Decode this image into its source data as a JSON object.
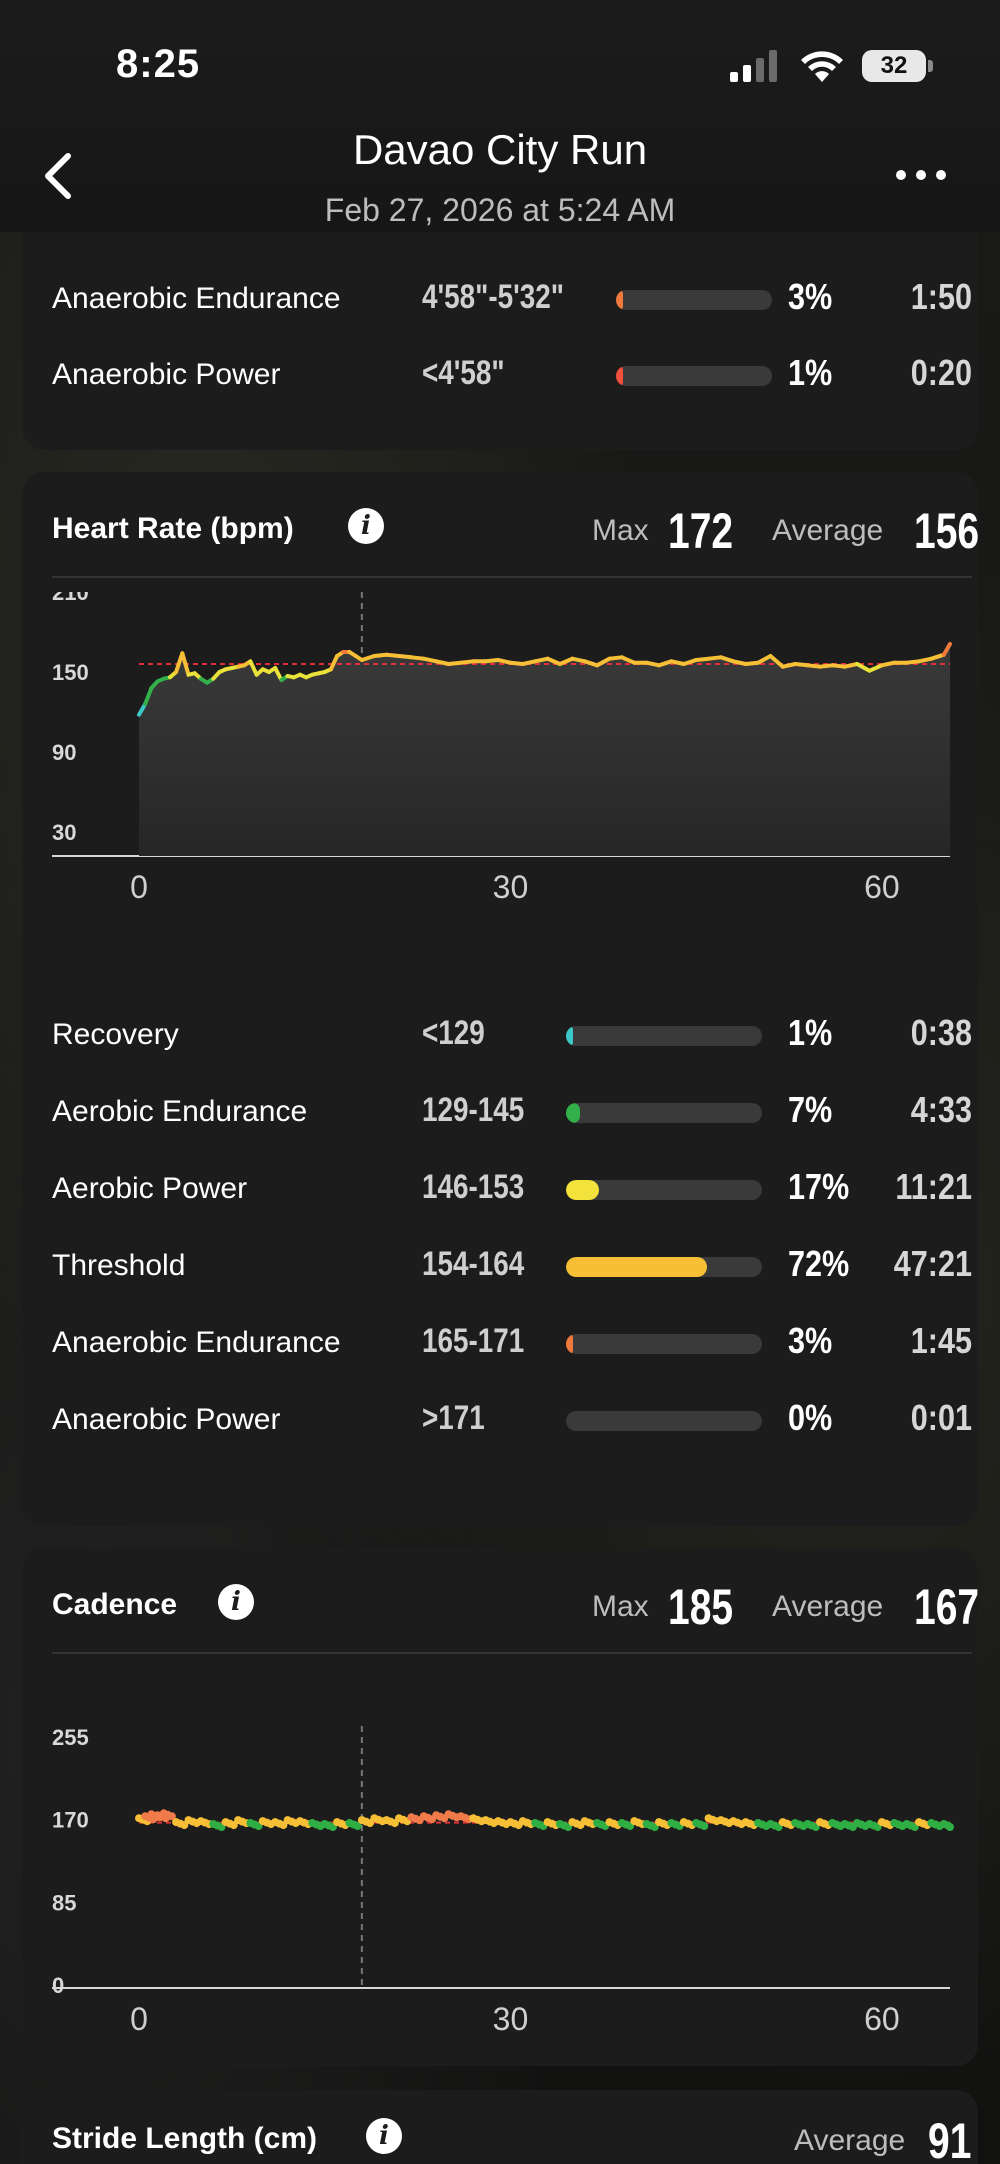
{
  "status_bar": {
    "time": "8:25",
    "battery": "32"
  },
  "header": {
    "title": "Davao City Run",
    "subtitle": "Feb 27, 2026 at 5:24 AM"
  },
  "pace_zones_partial": [
    {
      "name": "Anaerobic Endurance",
      "range": "4'58\"-5'32\"",
      "percent": "3%",
      "time": "1:50",
      "fraction": 0.03,
      "color": "#f07a3c"
    },
    {
      "name": "Anaerobic Power",
      "range": "<4'58\"",
      "percent": "1%",
      "time": "0:20",
      "fraction": 0.01,
      "color": "#f0503c"
    }
  ],
  "heart_rate": {
    "title": "Heart Rate (bpm)",
    "max_label": "Max",
    "max_value": "172",
    "avg_label": "Average",
    "avg_value": "156",
    "zones": [
      {
        "name": "Recovery",
        "range": "<129",
        "percent": "1%",
        "time": "0:38",
        "fraction": 0.01,
        "color": "#3cc8c8"
      },
      {
        "name": "Aerobic Endurance",
        "range": "129-145",
        "percent": "7%",
        "time": "4:33",
        "fraction": 0.07,
        "color": "#33b04a"
      },
      {
        "name": "Aerobic Power",
        "range": "146-153",
        "percent": "17%",
        "time": "11:21",
        "fraction": 0.17,
        "color": "#f2e23a"
      },
      {
        "name": "Threshold",
        "range": "154-164",
        "percent": "72%",
        "time": "47:21",
        "fraction": 0.72,
        "color": "#f7bf36"
      },
      {
        "name": "Anaerobic Endurance",
        "range": "165-171",
        "percent": "3%",
        "time": "1:45",
        "fraction": 0.03,
        "color": "#f07a3c"
      },
      {
        "name": "Anaerobic Power",
        "range": ">171",
        "percent": "0%",
        "time": "0:01",
        "fraction": 0.0,
        "color": "#f0503c"
      }
    ]
  },
  "cadence": {
    "title": "Cadence",
    "max_label": "Max",
    "max_value": "185",
    "avg_label": "Average",
    "avg_value": "167"
  },
  "stride": {
    "title": "Stride Length (cm)",
    "avg_label": "Average",
    "avg_value": "91"
  },
  "chart_data": [
    {
      "type": "line",
      "title": "Heart Rate (bpm)",
      "x_ticks": [
        "0",
        "30",
        "60"
      ],
      "y_ticks": [
        "210",
        "150",
        "90",
        "30"
      ],
      "xlim": [
        0,
        65.5
      ],
      "ylim": [
        30,
        210
      ],
      "average_line": 156,
      "marker_x": 18,
      "series": [
        {
          "x": [
            0,
            0.5,
            1,
            1.5,
            2,
            2.5,
            3,
            3.5,
            4,
            4.5,
            5,
            5.5,
            6,
            6.5,
            7,
            7.5,
            8,
            8.5,
            9,
            9.5,
            10,
            10.5,
            11,
            11.5,
            12,
            12.5,
            13,
            13.5,
            14,
            14.5,
            15,
            15.5,
            16,
            16.5,
            17,
            17.5,
            18,
            19,
            20,
            21,
            22,
            23,
            24,
            25,
            26,
            27,
            28,
            29,
            30,
            31,
            32,
            33,
            34,
            35,
            36,
            37,
            38,
            39,
            40,
            41,
            42,
            43,
            44,
            45,
            46,
            47,
            48,
            49,
            50,
            51,
            52,
            53,
            54,
            55,
            56,
            57,
            58,
            59,
            60,
            61,
            62,
            63,
            64,
            65,
            65.5
          ],
          "y": [
            118,
            126,
            138,
            143,
            145,
            146,
            150,
            164,
            148,
            149,
            145,
            142,
            145,
            150,
            152,
            153,
            154,
            155,
            158,
            148,
            152,
            150,
            153,
            144,
            147,
            146,
            148,
            146,
            148,
            149,
            150,
            152,
            162,
            165,
            165,
            162,
            159,
            162,
            163,
            162,
            161,
            160,
            158,
            156,
            157,
            158,
            158,
            159,
            157,
            156,
            158,
            160,
            156,
            160,
            158,
            155,
            160,
            161,
            157,
            157,
            155,
            158,
            156,
            159,
            160,
            161,
            158,
            156,
            157,
            162,
            154,
            156,
            155,
            154,
            155,
            154,
            156,
            151,
            155,
            157,
            157,
            158,
            160,
            163,
            171
          ]
        }
      ]
    },
    {
      "type": "scatter",
      "title": "Cadence",
      "x_ticks": [
        "0",
        "30",
        "60"
      ],
      "y_ticks": [
        "255",
        "170",
        "85",
        "0"
      ],
      "xlim": [
        0,
        65.5
      ],
      "ylim": [
        0,
        255
      ],
      "average_line": 167,
      "marker_x": 18,
      "series": [
        {
          "x": [
            0,
            0.5,
            1,
            1.5,
            2,
            3,
            4,
            5,
            6,
            7,
            8,
            9,
            10,
            11,
            12,
            13,
            14,
            15,
            16,
            17,
            18,
            19,
            20,
            21,
            22,
            23,
            24,
            25,
            26,
            27,
            28,
            29,
            30,
            31,
            32,
            33,
            34,
            35,
            36,
            37,
            38,
            39,
            40,
            41,
            42,
            43,
            44,
            45,
            46,
            47,
            48,
            49,
            50,
            51,
            52,
            53,
            54,
            55,
            56,
            57,
            58,
            59,
            60,
            61,
            62,
            63,
            64,
            65
          ],
          "y": [
            170,
            172,
            174,
            173,
            175,
            166,
            168,
            167,
            164,
            166,
            168,
            165,
            167,
            166,
            168,
            167,
            165,
            164,
            166,
            165,
            168,
            170,
            168,
            170,
            171,
            172,
            173,
            174,
            172,
            170,
            168,
            167,
            166,
            167,
            165,
            166,
            164,
            166,
            167,
            165,
            166,
            165,
            167,
            164,
            166,
            165,
            166,
            165,
            170,
            168,
            167,
            166,
            165,
            164,
            166,
            165,
            164,
            166,
            165,
            164,
            165,
            164,
            166,
            165,
            164,
            166,
            165,
            164
          ]
        }
      ]
    }
  ],
  "colors": {
    "card": "#1c1c1c",
    "threshold": "#f7bf36",
    "avg_line": "#e0303a"
  }
}
